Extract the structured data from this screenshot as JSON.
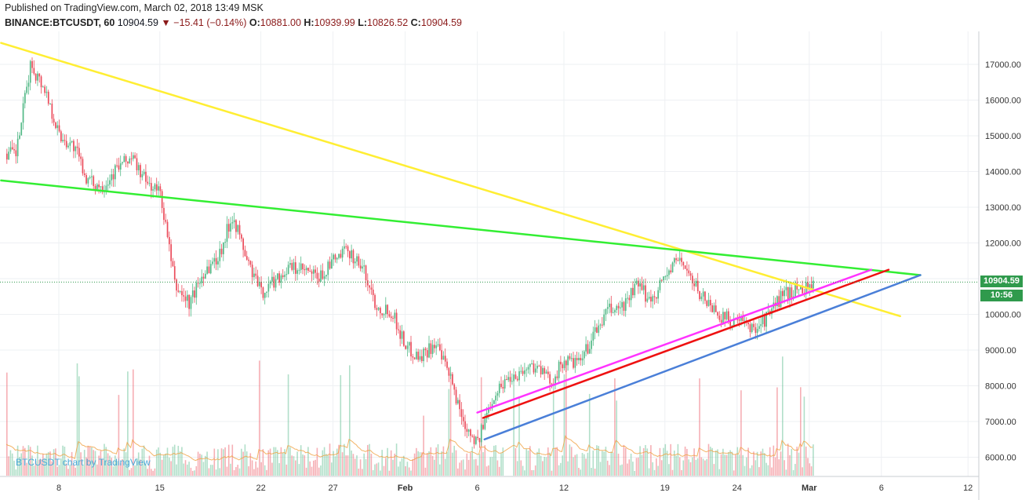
{
  "header": {
    "published": "Published on TradingView.com, March 02, 2018 13:49 MSK",
    "symbol": "BINANCE:BTCUSDT, 60",
    "last": "10904.59",
    "arrow": "▼",
    "change": "−15.41 (−0.14%)",
    "o_label": "O:",
    "o_value": "10881.00",
    "h_label": "H:",
    "h_value": "10939.99",
    "l_label": "L:",
    "l_value": "10826.52",
    "c_label": "C:",
    "c_value": "10904.59"
  },
  "price_tag": {
    "price": "10904.59",
    "countdown": "10:56"
  },
  "watermark": "BTCUSDT chart by TradingView",
  "colors": {
    "up": "#53b987",
    "down": "#eb4d5c",
    "yellow": "#ffee33",
    "green": "#33ee33",
    "magenta": "#ff33ff",
    "red": "#ee1111",
    "blue": "#4a7fd8",
    "ma": "#f0a040",
    "grid": "#eef0f3",
    "last_line": "#2f9a4c"
  },
  "chart_data": {
    "type": "candlestick",
    "y_ticks": [
      "6000.00",
      "7000.00",
      "8000.00",
      "9000.00",
      "10000.00",
      "11000.00",
      "12000.00",
      "13000.00",
      "14000.00",
      "15000.00",
      "16000.00",
      "17000.00"
    ],
    "x_ticks": [
      "8",
      "15",
      "22",
      "27",
      "Feb",
      "6",
      "12",
      "19",
      "24",
      "Mar",
      "6",
      "12"
    ],
    "ylim": [
      5400,
      17800
    ],
    "price_path": [
      [
        "Jan 5",
        14500
      ],
      [
        "Jan 6",
        17000
      ],
      [
        "Jan 7",
        16300
      ],
      [
        "Jan 8",
        15000
      ],
      [
        "Jan 9",
        14700
      ],
      [
        "Jan 10",
        13700
      ],
      [
        "Jan 11",
        13600
      ],
      [
        "Jan 12",
        14100
      ],
      [
        "Jan 13",
        14400
      ],
      [
        "Jan 14",
        13700
      ],
      [
        "Jan 15",
        13400
      ],
      [
        "Jan 16",
        10800
      ],
      [
        "Jan 17",
        10300
      ],
      [
        "Jan 18",
        11200
      ],
      [
        "Jan 19",
        11600
      ],
      [
        "Jan 20",
        12800
      ],
      [
        "Jan 21",
        11500
      ],
      [
        "Jan 22",
        10600
      ],
      [
        "Jan 23",
        11000
      ],
      [
        "Jan 24",
        11300
      ],
      [
        "Jan 25",
        11200
      ],
      [
        "Jan 26",
        11000
      ],
      [
        "Jan 27",
        11500
      ],
      [
        "Jan 28",
        11800
      ],
      [
        "Jan 29",
        11300
      ],
      [
        "Jan 30",
        10200
      ],
      [
        "Jan 31",
        10100
      ],
      [
        "Feb 1",
        9100
      ],
      [
        "Feb 2",
        8800
      ],
      [
        "Feb 3",
        9200
      ],
      [
        "Feb 4",
        8300
      ],
      [
        "Feb 5",
        7000
      ],
      [
        "Feb 6",
        6400
      ],
      [
        "Feb 7",
        7700
      ],
      [
        "Feb 8",
        8200
      ],
      [
        "Feb 9",
        8400
      ],
      [
        "Feb 10",
        8600
      ],
      [
        "Feb 11",
        8100
      ],
      [
        "Feb 12",
        8700
      ],
      [
        "Feb 13",
        8600
      ],
      [
        "Feb 14",
        9400
      ],
      [
        "Feb 15",
        10100
      ],
      [
        "Feb 16",
        10200
      ],
      [
        "Feb 17",
        10800
      ],
      [
        "Feb 18",
        10400
      ],
      [
        "Feb 19",
        11100
      ],
      [
        "Feb 20",
        11600
      ],
      [
        "Feb 21",
        10800
      ],
      [
        "Feb 22",
        10300
      ],
      [
        "Feb 23",
        9900
      ],
      [
        "Feb 24",
        9800
      ],
      [
        "Feb 25",
        9600
      ],
      [
        "Feb 26",
        9900
      ],
      [
        "Feb 27",
        10500
      ],
      [
        "Feb 28",
        10700
      ],
      [
        "Mar 1",
        10800
      ],
      [
        "Mar 2",
        10904.59
      ]
    ],
    "trendlines": [
      {
        "color": "yellow",
        "from": [
          "Jan 4",
          17600
        ],
        "to": [
          "Mar 7.3",
          9950
        ]
      },
      {
        "color": "green",
        "from": [
          "Jan 4",
          13750
        ],
        "to": [
          "Mar 8.7",
          11100
        ]
      },
      {
        "color": "magenta",
        "from": [
          "Feb 6",
          7250
        ],
        "to": [
          "Mar 5.3",
          11250
        ]
      },
      {
        "color": "red",
        "from": [
          "Feb 6.4",
          7100
        ],
        "to": [
          "Mar 6.5",
          11250
        ]
      },
      {
        "color": "blue",
        "from": [
          "Feb 6.5",
          6500
        ],
        "to": [
          "Mar 8.7",
          11100
        ]
      }
    ]
  }
}
